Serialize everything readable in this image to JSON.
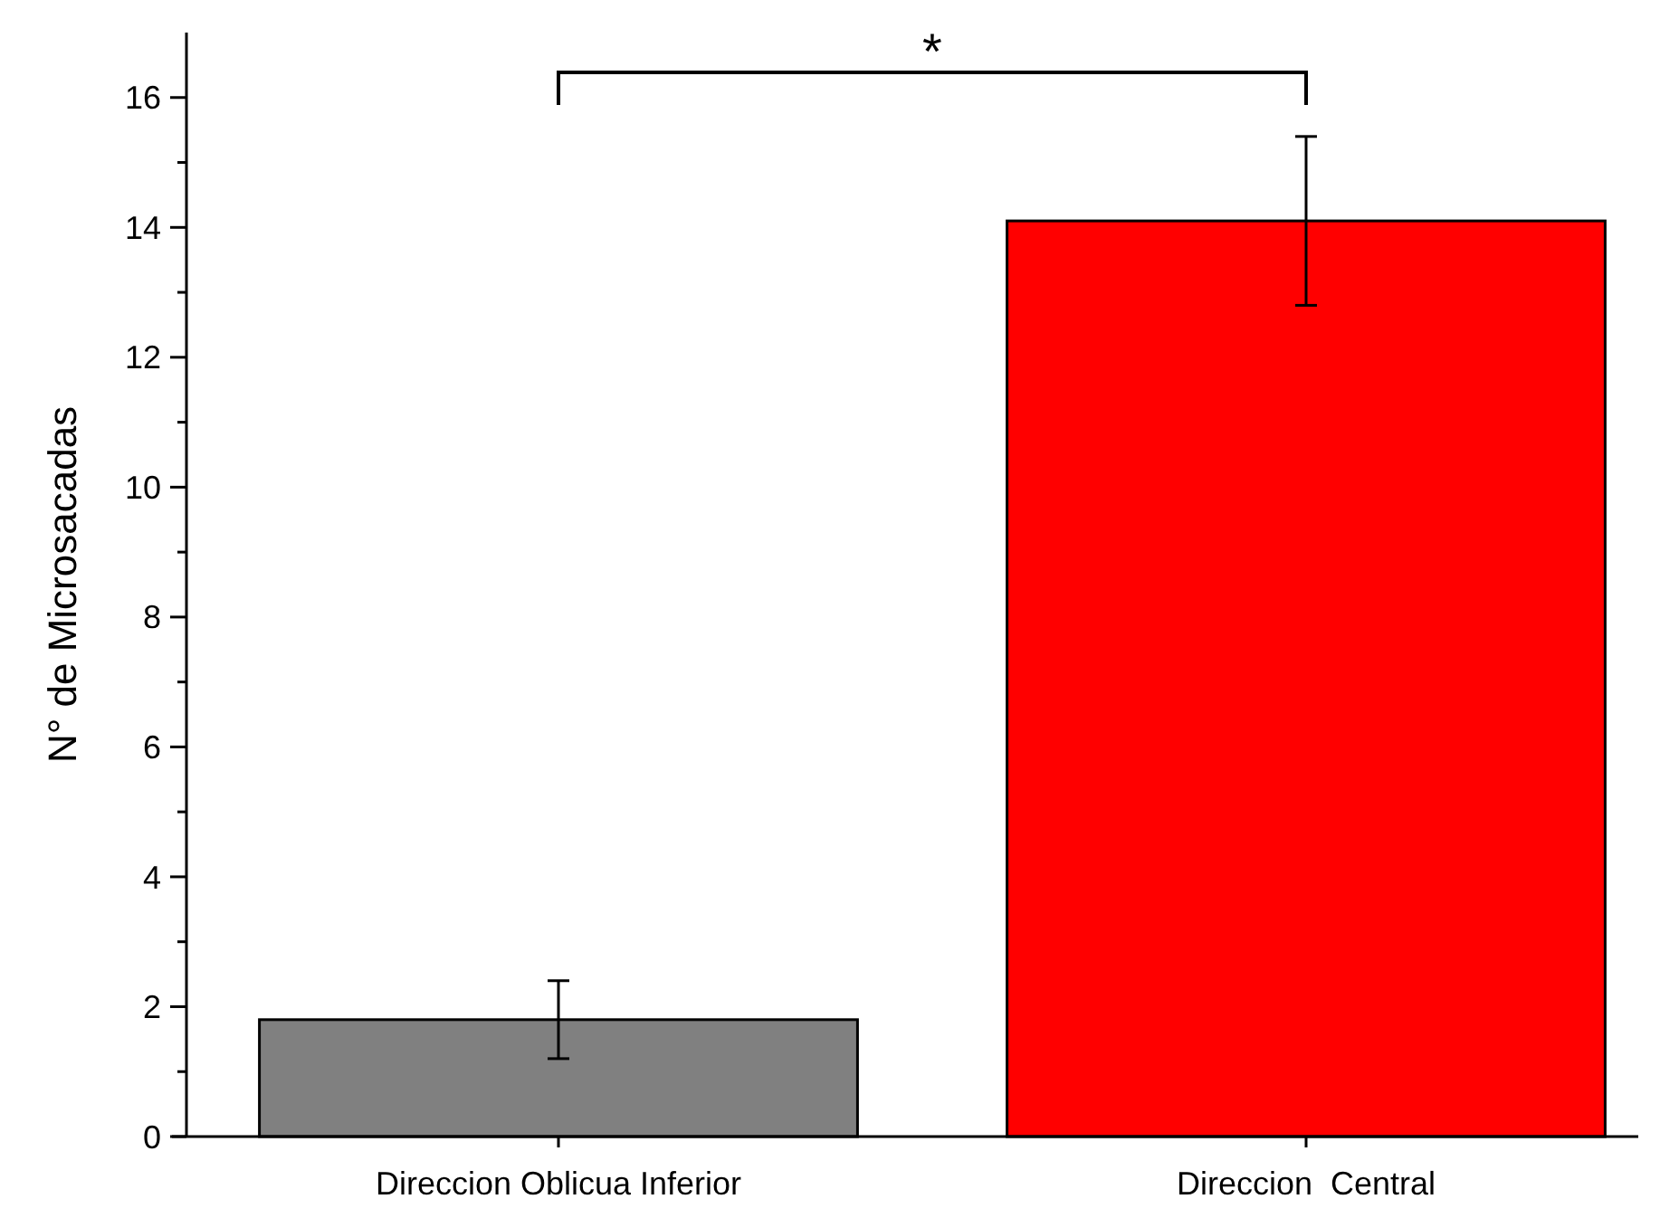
{
  "chart_data": {
    "type": "bar",
    "ylabel": "N° de Microsacadas",
    "categories": [
      "Direccion Oblicua Inferior",
      "Direccion  Central"
    ],
    "values": [
      1.8,
      14.1
    ],
    "colors": [
      "#808080",
      "#ff0000"
    ],
    "errors": [
      [
        1.2,
        2.4
      ],
      [
        12.8,
        15.4
      ]
    ],
    "ylim": [
      0,
      17
    ],
    "yticks": [
      0,
      {
        "value": 1,
        "label": null
      },
      2,
      {
        "value": 3,
        "label": null
      },
      4,
      {
        "value": 5,
        "label": null
      },
      6,
      {
        "value": 7,
        "label": null
      },
      8,
      {
        "value": 9,
        "label": null
      },
      10,
      {
        "value": 11,
        "label": null
      },
      12,
      {
        "value": 13,
        "label": null
      },
      14,
      {
        "value": 15,
        "label": null
      },
      16
    ],
    "annotations": [
      "*"
    ],
    "grid": false
  }
}
